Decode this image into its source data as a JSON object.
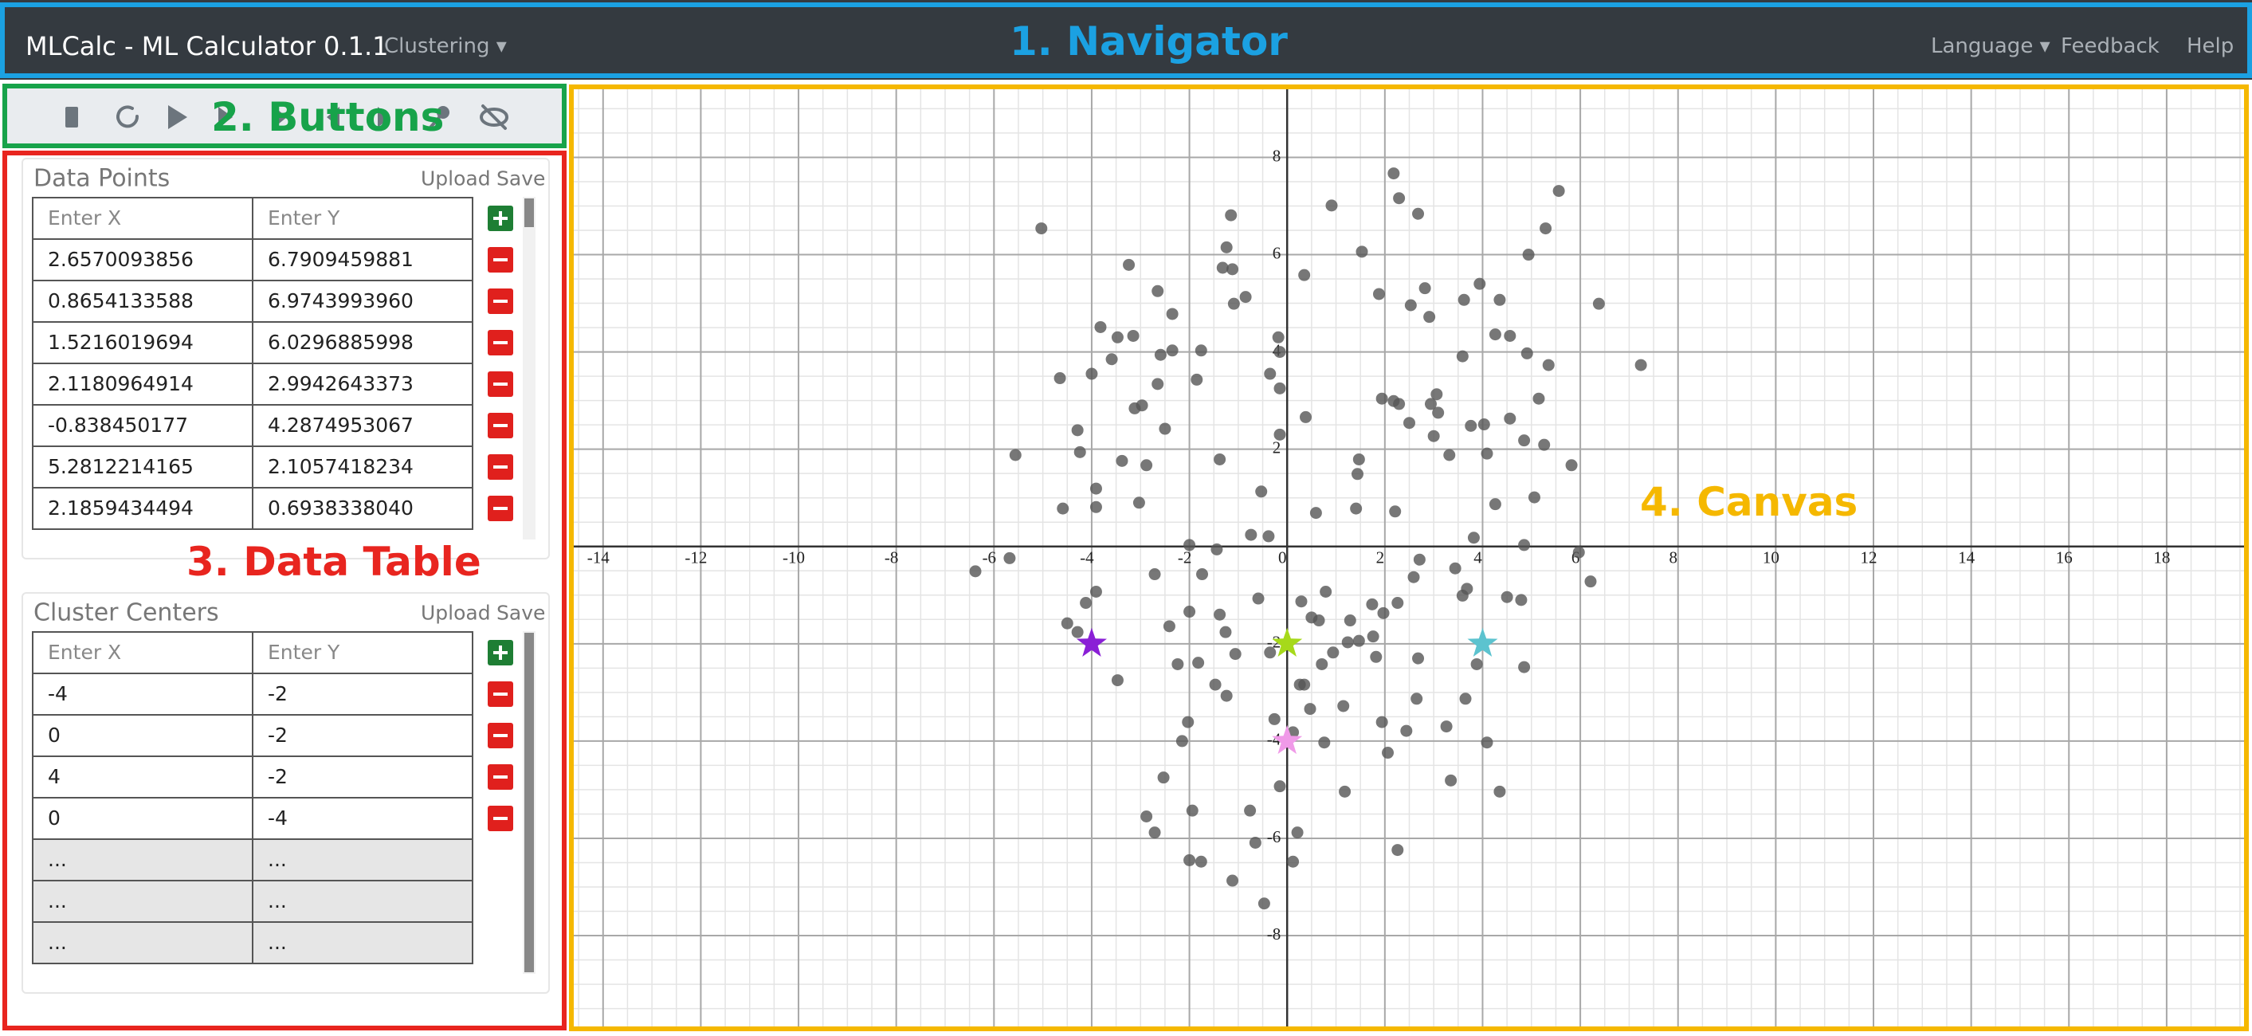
{
  "navigator": {
    "brand": "MLCalc - ML Calculator 0.1.1",
    "menu": "Clustering",
    "links": [
      "Language",
      "Feedback",
      "Help"
    ]
  },
  "annotations": [
    "1. Navigator",
    "2. Buttons",
    "3. Data Table",
    "4. Canvas"
  ],
  "data_points": {
    "title": "Data Points",
    "actions": [
      "Upload",
      "Save"
    ],
    "columns": [
      "Enter X",
      "Enter Y"
    ],
    "rows": [
      [
        "2.6570093856",
        "6.7909459881"
      ],
      [
        "0.8654133588",
        "6.9743993960"
      ],
      [
        "1.5216019694",
        "6.0296885998"
      ],
      [
        "2.1180964914",
        "2.9942643373"
      ],
      [
        "-0.838450177",
        "4.2874953067"
      ],
      [
        "5.2812214165",
        "2.1057418234"
      ],
      [
        "2.1859434494",
        "0.6938338040"
      ]
    ]
  },
  "cluster_centers": {
    "title": "Cluster Centers",
    "actions": [
      "Upload",
      "Save"
    ],
    "columns": [
      "Enter X",
      "Enter Y"
    ],
    "rows": [
      [
        -4,
        -2
      ],
      [
        0,
        -2
      ],
      [
        4,
        -2
      ],
      [
        0,
        -4
      ],
      [
        "...",
        "..."
      ],
      [
        "...",
        "..."
      ],
      [
        "...",
        "..."
      ]
    ]
  },
  "canvas": {
    "type": "scatter",
    "xlim": [
      -14.6,
      19.6
    ],
    "ylim": [
      -9.9,
      9.4
    ],
    "xticks": [
      -14,
      -12,
      -10,
      -8,
      -6,
      -4,
      -2,
      0,
      2,
      4,
      6,
      8,
      10,
      12,
      14,
      16,
      18
    ],
    "yticks": [
      -8,
      -6,
      -4,
      -2,
      2,
      4,
      6,
      8
    ],
    "grid": true,
    "minor_grid_step": 0.5,
    "point_color": "#555555",
    "center_colors": [
      "#8a1fd6",
      "#a6d91a",
      "#5cc3cf",
      "#f09ae8"
    ],
    "points": {
      "x": [
        -5.03,
        -5.56,
        -6.38,
        -5.68,
        -4.65,
        -4.59,
        -4.29,
        -4.24,
        -4.0,
        -3.82,
        -3.91,
        -3.91,
        -3.91,
        -4.12,
        -4.29,
        -4.5,
        -3.47,
        -3.24,
        -3.47,
        -3.59,
        -3.15,
        -3.12,
        -2.97,
        -3.38,
        -2.88,
        -3.03,
        -2.65,
        -2.35,
        -2.59,
        -2.35,
        -2.65,
        -2.5,
        -1.76,
        -1.85,
        -1.15,
        -1.24,
        -1.32,
        -1.12,
        -1.09,
        -0.85,
        -1.38,
        -1.44,
        -2.0,
        -2.71,
        -1.74,
        -2.41,
        -2.0,
        -2.24,
        -1.82,
        -1.38,
        -1.26,
        -1.06,
        -1.47,
        -1.24,
        -2.03,
        -2.15,
        -2.53,
        -2.88,
        -2.71,
        -1.94,
        -2.0,
        -1.76,
        -1.12,
        -0.76,
        -0.65,
        -0.47,
        -0.26,
        -0.15,
        0.12,
        0.21,
        0.12,
        -0.35,
        -0.59,
        -0.74,
        -0.38,
        -0.53,
        -0.18,
        -0.15,
        -0.15,
        -0.35,
        -0.15,
        0.35,
        0.38,
        0.59,
        0.91,
        1.53,
        1.47,
        1.44,
        1.41,
        2.21,
        1.88,
        2.18,
        2.29,
        2.68,
        2.53,
        2.82,
        2.91,
        1.94,
        2.18,
        2.29,
        2.5,
        2.94,
        3.06,
        3.09,
        3.0,
        3.32,
        3.62,
        3.94,
        4.35,
        4.26,
        3.59,
        3.76,
        4.03,
        4.09,
        4.56,
        4.56,
        4.91,
        4.94,
        5.29,
        5.56,
        5.35,
        5.15,
        4.85,
        5.26,
        5.82,
        6.38,
        7.24,
        5.06,
        4.26,
        3.82,
        4.85,
        5.97,
        6.21,
        4.5,
        4.79,
        3.68,
        3.44,
        3.59,
        2.71,
        2.59,
        2.26,
        1.97,
        1.74,
        1.29,
        0.79,
        0.5,
        0.65,
        0.29,
        0.71,
        0.94,
        1.24,
        1.47,
        1.76,
        1.82,
        2.68,
        2.65,
        1.94,
        2.44,
        2.06,
        1.18,
        0.76,
        1.15,
        0.47,
        0.26,
        0.35,
        3.26,
        3.35,
        3.65,
        3.88,
        4.09,
        4.35,
        4.85,
        2.26
      ],
      "y": [
        6.54,
        1.88,
        -0.51,
        -0.24,
        3.46,
        0.78,
        2.39,
        1.94,
        3.55,
        4.51,
        1.19,
        0.81,
        -0.93,
        -1.16,
        -1.76,
        -1.58,
        -2.75,
        5.79,
        4.3,
        3.85,
        4.33,
        2.84,
        2.9,
        1.76,
        1.67,
        0.9,
        5.25,
        4.78,
        3.94,
        4.03,
        3.34,
        2.42,
        4.03,
        3.43,
        6.81,
        6.15,
        5.73,
        5.7,
        4.99,
        5.13,
        1.79,
        -0.06,
        0.03,
        -0.57,
        -0.57,
        -1.64,
        -1.34,
        -2.42,
        -2.39,
        -1.4,
        -1.76,
        -2.21,
        -2.84,
        -3.07,
        -3.61,
        -4.0,
        -4.75,
        -5.55,
        -5.88,
        -5.43,
        -6.45,
        -6.48,
        -6.87,
        -5.43,
        -6.09,
        -7.34,
        -3.55,
        -4.93,
        -3.82,
        -5.88,
        -6.48,
        -2.18,
        -1.07,
        0.24,
        0.21,
        1.13,
        4.3,
        4.0,
        3.25,
        3.55,
        2.3,
        5.58,
        2.66,
        0.69,
        7.01,
        6.06,
        1.79,
        1.49,
        0.78,
        0.72,
        5.19,
        7.67,
        7.16,
        6.84,
        4.96,
        5.31,
        4.72,
        3.04,
        2.99,
        2.93,
        2.54,
        2.93,
        3.13,
        2.75,
        2.27,
        1.88,
        5.07,
        5.4,
        5.07,
        4.36,
        3.91,
        2.48,
        2.51,
        1.91,
        2.63,
        4.33,
        3.97,
        6.0,
        6.54,
        7.31,
        3.73,
        3.04,
        2.18,
        2.09,
        1.67,
        4.99,
        3.73,
        1.01,
        0.87,
        0.18,
        0.03,
        -0.12,
        -0.72,
        -1.04,
        -1.1,
        -0.87,
        -0.45,
        -1.01,
        -0.27,
        -0.63,
        -1.16,
        -1.37,
        -1.19,
        -1.52,
        -0.93,
        -1.46,
        -1.52,
        -1.13,
        -2.42,
        -2.18,
        -1.97,
        -1.94,
        -1.85,
        -2.27,
        -2.3,
        -3.13,
        -3.61,
        -3.79,
        -4.24,
        -5.04,
        -4.03,
        -3.28,
        -3.34,
        -2.84,
        -2.84,
        -3.7,
        -4.81,
        -3.13,
        -2.42,
        -4.03,
        -5.04,
        -2.48,
        -6.24
      ]
    }
  }
}
